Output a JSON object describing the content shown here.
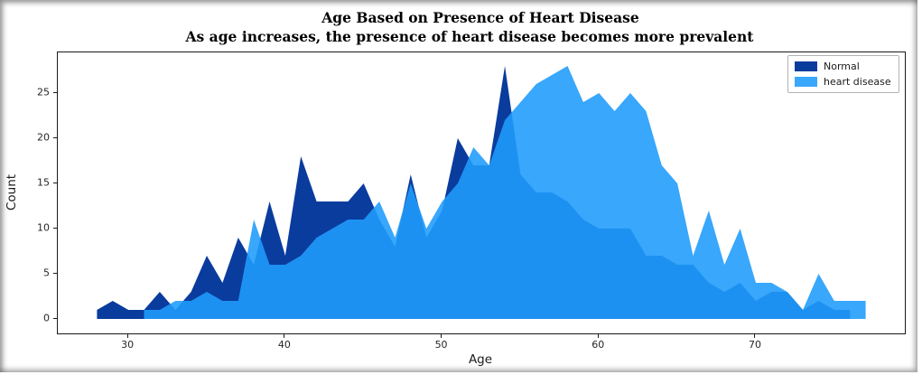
{
  "chart_data": {
    "type": "area",
    "title": "Age Based on Presence of Heart Disease",
    "subtitle": "As age increases, the presence of heart disease becomes more prevalent",
    "xlabel": "Age",
    "ylabel": "Count",
    "xlim": [
      25.5,
      79.5
    ],
    "ylim": [
      -1.6,
      29.5
    ],
    "xticks": [
      30,
      40,
      50,
      60,
      70
    ],
    "yticks": [
      0,
      5,
      10,
      15,
      20,
      25
    ],
    "grid": false,
    "legend_position": "upper right",
    "series": [
      {
        "name": "Normal",
        "color": "#0a3c9e",
        "fill_opacity": 1,
        "x": [
          28,
          29,
          30,
          31,
          32,
          33,
          34,
          35,
          36,
          37,
          38,
          39,
          40,
          41,
          42,
          43,
          44,
          45,
          46,
          47,
          48,
          49,
          50,
          51,
          52,
          53,
          54,
          55,
          56,
          57,
          58,
          59,
          60,
          61,
          62,
          63,
          64,
          65,
          66,
          67,
          68,
          69,
          70,
          71,
          72,
          73,
          74,
          75,
          76
        ],
        "y": [
          1,
          2,
          1,
          1,
          3,
          1,
          3,
          7,
          4,
          9,
          6,
          13,
          7,
          18,
          13,
          13,
          13,
          15,
          11,
          8,
          16,
          9,
          12,
          20,
          17,
          17,
          28,
          16,
          14,
          14,
          13,
          11,
          10,
          10,
          10,
          7,
          7,
          6,
          6,
          4,
          3,
          4,
          2,
          3,
          3,
          1,
          2,
          1,
          1
        ]
      },
      {
        "name": "heart disease",
        "color": "#209cfc",
        "fill_opacity": 0.89,
        "x": [
          31,
          32,
          33,
          34,
          35,
          36,
          37,
          38,
          39,
          40,
          41,
          42,
          43,
          44,
          45,
          46,
          47,
          48,
          49,
          50,
          51,
          52,
          53,
          54,
          55,
          56,
          57,
          58,
          59,
          60,
          61,
          62,
          63,
          64,
          65,
          66,
          67,
          68,
          69,
          70,
          71,
          72,
          73,
          74,
          75,
          76,
          77
        ],
        "y": [
          1,
          1,
          2,
          2,
          3,
          2,
          2,
          11,
          6,
          6,
          7,
          9,
          10,
          11,
          11,
          13,
          9,
          15,
          10,
          13,
          15,
          19,
          17,
          22,
          24,
          26,
          27,
          28,
          24,
          25,
          23,
          25,
          23,
          17,
          15,
          7,
          12,
          6,
          10,
          4,
          4,
          3,
          1,
          5,
          2,
          2,
          2
        ]
      }
    ]
  }
}
